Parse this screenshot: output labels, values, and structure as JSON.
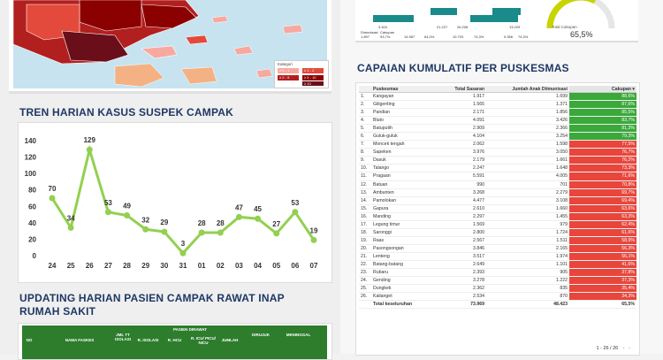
{
  "map": {
    "legend_title": "Kategori",
    "legend_items": [
      "≥ 0 - 1",
      "≥ 1 - 2",
      "≥ 2 - 5",
      "≥ 5 - 10",
      "≥ 10"
    ],
    "colors": [
      "#f7a9a0",
      "#e34a3b",
      "#b21f1f",
      "#8b0000",
      "#6a0f1a"
    ]
  },
  "trend": {
    "title": "TREN HARIAN KASUS SUSPEK CAMPAK",
    "line_color": "#92d050"
  },
  "chart_data": {
    "type": "line",
    "categories": [
      "24",
      "25",
      "26",
      "27",
      "28",
      "29",
      "30",
      "31",
      "01",
      "02",
      "03",
      "04",
      "05",
      "06",
      "07"
    ],
    "values": [
      70,
      34,
      129,
      53,
      49,
      32,
      29,
      3,
      28,
      28,
      47,
      45,
      27,
      53,
      19
    ],
    "yticks": [
      0,
      20,
      40,
      60,
      80,
      100,
      120,
      140
    ],
    "ylim": [
      0,
      140
    ],
    "grid": false
  },
  "rawat_inap": {
    "title_line1": "UPDATING HARIAN PASIEN CAMPAK RAWAT INAP",
    "title_line2": "RUMAH SAKIT",
    "headers": {
      "no": "NO",
      "nama": "NAMA FASKES",
      "jml": "JML TT ISOLASI",
      "dirawat": "PASIEN DIRAWAT",
      "isolasi": "R. ISOLASI",
      "hcu": "R. HCU",
      "icu": "R. ICU/ PICU/ NICU",
      "jumlah": "JUMLAH",
      "dirujuk": "DIRUJUK",
      "meninggal": "MENINGGAL"
    }
  },
  "top_right": {
    "labels": [
      "Dimunisasi",
      "Cakupan"
    ],
    "stats": [
      {
        "a": "1.897",
        "b": "93,7%"
      },
      {
        "a": "14.987",
        "b": "64,0%"
      },
      {
        "a": "19.703",
        "b": "74,3%"
      },
      {
        "a": "9.356",
        "b": "74,3%"
      }
    ],
    "mid_numbers": [
      "3.404",
      "21.227",
      "26.208",
      "13.229"
    ],
    "gauge_label": "Total Cakupan",
    "gauge_value": "65,5%",
    "gauge_fraction": 0.655
  },
  "puskesmas": {
    "title": "CAPAIAN KUMULATIF PER PUSKESMAS",
    "columns": [
      "Puskesmas",
      "Total Sasaran",
      "Jumlah Anak Diimunisasi",
      "Cakupan ▾"
    ],
    "rows": [
      [
        "1.",
        "Kangayan",
        "1.917",
        "1.699",
        "88,6%"
      ],
      [
        "2.",
        "Giligenting",
        "1.565",
        "1.371",
        "87,6%"
      ],
      [
        "3.",
        "Pandian",
        "2.171",
        "1.856",
        "85,5%"
      ],
      [
        "4.",
        "Bluto",
        "4.091",
        "3.426",
        "83,7%"
      ],
      [
        "5.",
        "Batuputih",
        "2.909",
        "2.366",
        "81,3%"
      ],
      [
        "6.",
        "Guluk-guluk",
        "4.104",
        "3.254",
        "79,3%"
      ],
      [
        "7.",
        "Moncek tengah",
        "2.062",
        "1.598",
        "77,5%"
      ],
      [
        "8.",
        "Sapeken",
        "3.976",
        "3.050",
        "76,7%"
      ],
      [
        "9.",
        "Dasuk",
        "2.179",
        "1.661",
        "76,2%"
      ],
      [
        "10.",
        "Talango",
        "2.247",
        "1.648",
        "73,3%"
      ],
      [
        "11.",
        "Pragaan",
        "5.591",
        "4.005",
        "71,6%"
      ],
      [
        "12.",
        "Batuan",
        "990",
        "701",
        "70,8%"
      ],
      [
        "13.",
        "Ambunten",
        "3.268",
        "2.279",
        "69,7%"
      ],
      [
        "14.",
        "Pamolokan",
        "4.477",
        "3.108",
        "69,4%"
      ],
      [
        "15.",
        "Gapura",
        "2.610",
        "1.660",
        "63,6%"
      ],
      [
        "16.",
        "Manding",
        "2.297",
        "1.455",
        "63,3%"
      ],
      [
        "17.",
        "Legung timur",
        "1.569",
        "979",
        "62,4%"
      ],
      [
        "18.",
        "Saronggi",
        "2.800",
        "1.724",
        "61,6%"
      ],
      [
        "19.",
        "Raas",
        "2.567",
        "1.511",
        "58,9%"
      ],
      [
        "20.",
        "Pasongsongan",
        "3.846",
        "2.165",
        "56,3%"
      ],
      [
        "21.",
        "Lenteng",
        "3.517",
        "1.974",
        "56,1%"
      ],
      [
        "22.",
        "Batang-batang",
        "2.649",
        "1.101",
        "41,6%"
      ],
      [
        "23.",
        "Rubaru",
        "2.393",
        "905",
        "37,8%"
      ],
      [
        "24.",
        "Gending",
        "3.278",
        "1.222",
        "37,3%"
      ],
      [
        "25.",
        "Dungkek",
        "2.362",
        "835",
        "35,4%"
      ],
      [
        "26.",
        "Kalianget",
        "2.534",
        "870",
        "34,3%"
      ]
    ],
    "total": [
      "Total keseluruhan",
      "73.969",
      "48.423",
      "65,5%"
    ],
    "pager": "1 - 26 / 26",
    "green": "#3aa83a",
    "red": "#e8463c",
    "threshold": 79
  }
}
